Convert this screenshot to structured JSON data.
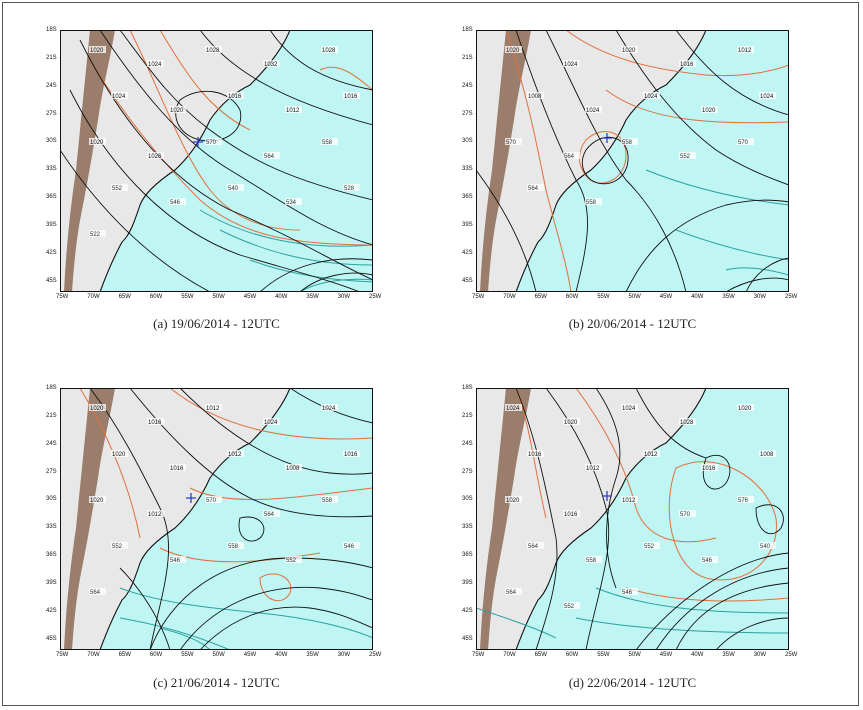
{
  "figure": {
    "panels": [
      {
        "caption": "(a)  19/06/2014 - 12UTC",
        "pressure_labels": [
          "1020",
          "1024",
          "1028",
          "1032",
          "1028",
          "1024",
          "1020",
          "1016",
          "1012",
          "1016",
          "1020",
          "1026"
        ],
        "thickness_labels": [
          "570",
          "564",
          "558",
          "552",
          "546",
          "540",
          "534",
          "528",
          "522"
        ]
      },
      {
        "caption": "(b)  20/06/2014 - 12UTC",
        "pressure_labels": [
          "1020",
          "1024",
          "1020",
          "1016",
          "1012",
          "1008",
          "1024",
          "1024",
          "1020",
          "1024"
        ],
        "thickness_labels": [
          "570",
          "564",
          "558",
          "552",
          "570",
          "564",
          "558"
        ]
      },
      {
        "caption": "(c)  21/06/2014 - 12UTC",
        "pressure_labels": [
          "1020",
          "1016",
          "1012",
          "1024",
          "1024",
          "1020",
          "1016",
          "1012",
          "1008",
          "1016",
          "1020",
          "1012"
        ],
        "thickness_labels": [
          "570",
          "564",
          "558",
          "552",
          "546",
          "558",
          "552",
          "546",
          "564"
        ]
      },
      {
        "caption": "(d)  22/06/2014 - 12UTC",
        "pressure_labels": [
          "1024",
          "1020",
          "1024",
          "1028",
          "1020",
          "1016",
          "1012",
          "1012",
          "1016",
          "1008",
          "1020",
          "1016",
          "1012"
        ],
        "thickness_labels": [
          "570",
          "576",
          "564",
          "558",
          "552",
          "546",
          "540",
          "564",
          "552",
          "546"
        ]
      }
    ],
    "lat_ticks": [
      "18S",
      "21S",
      "24S",
      "27S",
      "30S",
      "33S",
      "36S",
      "39S",
      "42S",
      "45S"
    ],
    "lon_ticks": [
      "75W",
      "70W",
      "65W",
      "60W",
      "55W",
      "50W",
      "45W",
      "40W",
      "35W",
      "30W",
      "25W"
    ],
    "colors": {
      "ocean": "#bff5f3",
      "land": "#e8e8e8",
      "andes": "#8c6a55",
      "isobar": "#111111",
      "thickness_warm": "#e0703a",
      "thickness_cool": "#2aa3a0",
      "marker": "#2233cc"
    }
  }
}
